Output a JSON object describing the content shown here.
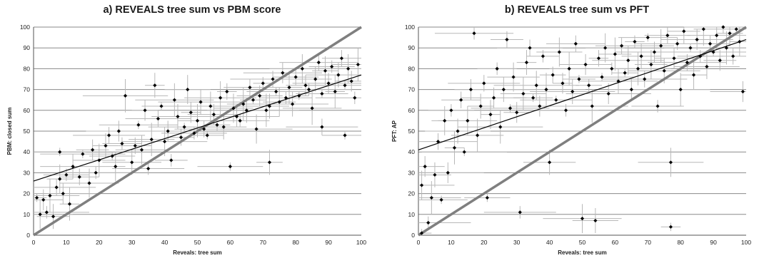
{
  "chart_data": [
    {
      "type": "scatter",
      "title": "a) REVEALS tree sum vs PBM score",
      "xlabel": "Reveals: tree sum",
      "ylabel": "PBM: closed sum",
      "xlim": [
        0,
        100
      ],
      "ylim": [
        0,
        100
      ],
      "x_ticks": [
        0,
        10,
        20,
        30,
        40,
        50,
        60,
        70,
        80,
        90,
        100
      ],
      "y_ticks": [
        0,
        10,
        20,
        30,
        40,
        50,
        60,
        70,
        80,
        90,
        100
      ],
      "grid": "horizontal",
      "series": [
        {
          "marker": "diamond",
          "error_bars": "horizontal and vertical",
          "points": [
            [
              1,
              18
            ],
            [
              2,
              10
            ],
            [
              3,
              17
            ],
            [
              4,
              11
            ],
            [
              5,
              19
            ],
            [
              6,
              9
            ],
            [
              7,
              23
            ],
            [
              8,
              40
            ],
            [
              8,
              27
            ],
            [
              9,
              20
            ],
            [
              10,
              29
            ],
            [
              11,
              15
            ],
            [
              12,
              33
            ],
            [
              14,
              28
            ],
            [
              15,
              39
            ],
            [
              17,
              25
            ],
            [
              18,
              41
            ],
            [
              19,
              30
            ],
            [
              20,
              36
            ],
            [
              22,
              43
            ],
            [
              23,
              48
            ],
            [
              24,
              38
            ],
            [
              25,
              33
            ],
            [
              26,
              50
            ],
            [
              27,
              44
            ],
            [
              28,
              67
            ],
            [
              30,
              35
            ],
            [
              31,
              43
            ],
            [
              32,
              53
            ],
            [
              33,
              41
            ],
            [
              34,
              60
            ],
            [
              35,
              32
            ],
            [
              36,
              46
            ],
            [
              37,
              72
            ],
            [
              38,
              56
            ],
            [
              39,
              62
            ],
            [
              40,
              45
            ],
            [
              41,
              50
            ],
            [
              42,
              36
            ],
            [
              43,
              65
            ],
            [
              44,
              57
            ],
            [
              45,
              47
            ],
            [
              46,
              52
            ],
            [
              47,
              70
            ],
            [
              48,
              59
            ],
            [
              49,
              49
            ],
            [
              50,
              55
            ],
            [
              51,
              64
            ],
            [
              52,
              51
            ],
            [
              53,
              48
            ],
            [
              54,
              62
            ],
            [
              55,
              58
            ],
            [
              56,
              53
            ],
            [
              57,
              66
            ],
            [
              58,
              52
            ],
            [
              59,
              69
            ],
            [
              60,
              33
            ],
            [
              61,
              61
            ],
            [
              62,
              57
            ],
            [
              63,
              55
            ],
            [
              64,
              63
            ],
            [
              65,
              60
            ],
            [
              66,
              71
            ],
            [
              67,
              65
            ],
            [
              68,
              51
            ],
            [
              69,
              67
            ],
            [
              70,
              73
            ],
            [
              71,
              60
            ],
            [
              72,
              62
            ],
            [
              73,
              75
            ],
            [
              74,
              69
            ],
            [
              75,
              64
            ],
            [
              76,
              78
            ],
            [
              77,
              66
            ],
            [
              78,
              71
            ],
            [
              79,
              63
            ],
            [
              80,
              76
            ],
            [
              81,
              67
            ],
            [
              82,
              80
            ],
            [
              83,
              72
            ],
            [
              84,
              70
            ],
            [
              85,
              61
            ],
            [
              86,
              75
            ],
            [
              87,
              83
            ],
            [
              88,
              68
            ],
            [
              89,
              79
            ],
            [
              90,
              73
            ],
            [
              91,
              81
            ],
            [
              92,
              69
            ],
            [
              93,
              77
            ],
            [
              94,
              85
            ],
            [
              95,
              72
            ],
            [
              96,
              80
            ],
            [
              97,
              74
            ],
            [
              98,
              66
            ],
            [
              99,
              82
            ],
            [
              72,
              35
            ],
            [
              88,
              52
            ],
            [
              95,
              48
            ]
          ]
        }
      ],
      "trendline": [
        [
          0,
          26
        ],
        [
          100,
          77
        ]
      ],
      "reference_line": [
        [
          0,
          0
        ],
        [
          100,
          100
        ]
      ]
    },
    {
      "type": "scatter",
      "title": "b) REVEALS tree sum vs PFT",
      "xlabel": "Reveals: tree sum",
      "ylabel": "PFT: AP",
      "xlim": [
        0,
        100
      ],
      "ylim": [
        0,
        100
      ],
      "x_ticks": [
        0,
        10,
        20,
        30,
        40,
        50,
        60,
        70,
        80,
        90,
        100
      ],
      "y_ticks": [
        0,
        10,
        20,
        30,
        40,
        50,
        60,
        70,
        80,
        90,
        100
      ],
      "grid": "horizontal",
      "series": [
        {
          "marker": "diamond",
          "error_bars": "horizontal and vertical",
          "points": [
            [
              1,
              1
            ],
            [
              1,
              24
            ],
            [
              2,
              33
            ],
            [
              3,
              6
            ],
            [
              4,
              18
            ],
            [
              5,
              29
            ],
            [
              6,
              45
            ],
            [
              7,
              17
            ],
            [
              8,
              55
            ],
            [
              9,
              30
            ],
            [
              10,
              60
            ],
            [
              11,
              42
            ],
            [
              12,
              50
            ],
            [
              13,
              65
            ],
            [
              14,
              40
            ],
            [
              15,
              55
            ],
            [
              16,
              70
            ],
            [
              17,
              97
            ],
            [
              18,
              48
            ],
            [
              19,
              62
            ],
            [
              20,
              73
            ],
            [
              21,
              18
            ],
            [
              22,
              58
            ],
            [
              23,
              66
            ],
            [
              24,
              80
            ],
            [
              25,
              52
            ],
            [
              26,
              70
            ],
            [
              27,
              94
            ],
            [
              28,
              61
            ],
            [
              29,
              76
            ],
            [
              30,
              59
            ],
            [
              31,
              11
            ],
            [
              32,
              68
            ],
            [
              33,
              83
            ],
            [
              34,
              90
            ],
            [
              35,
              66
            ],
            [
              36,
              72
            ],
            [
              37,
              62
            ],
            [
              38,
              86
            ],
            [
              39,
              70
            ],
            [
              40,
              35
            ],
            [
              41,
              77
            ],
            [
              42,
              65
            ],
            [
              43,
              88
            ],
            [
              44,
              73
            ],
            [
              45,
              60
            ],
            [
              46,
              80
            ],
            [
              47,
              69
            ],
            [
              48,
              92
            ],
            [
              49,
              75
            ],
            [
              50,
              8
            ],
            [
              51,
              82
            ],
            [
              52,
              72
            ],
            [
              53,
              62
            ],
            [
              54,
              7
            ],
            [
              55,
              85
            ],
            [
              56,
              76
            ],
            [
              57,
              90
            ],
            [
              58,
              68
            ],
            [
              59,
              80
            ],
            [
              60,
              87
            ],
            [
              61,
              74
            ],
            [
              62,
              91
            ],
            [
              63,
              78
            ],
            [
              64,
              84
            ],
            [
              65,
              70
            ],
            [
              66,
              93
            ],
            [
              67,
              80
            ],
            [
              68,
              86
            ],
            [
              69,
              75
            ],
            [
              70,
              95
            ],
            [
              71,
              82
            ],
            [
              72,
              88
            ],
            [
              73,
              62
            ],
            [
              74,
              91
            ],
            [
              75,
              79
            ],
            [
              76,
              96
            ],
            [
              77,
              4
            ],
            [
              77,
              35
            ],
            [
              78,
              85
            ],
            [
              79,
              92
            ],
            [
              80,
              70
            ],
            [
              81,
              98
            ],
            [
              82,
              83
            ],
            [
              83,
              90
            ],
            [
              84,
              77
            ],
            [
              85,
              94
            ],
            [
              86,
              86
            ],
            [
              87,
              99
            ],
            [
              88,
              81
            ],
            [
              89,
              92
            ],
            [
              90,
              88
            ],
            [
              91,
              96
            ],
            [
              92,
              84
            ],
            [
              93,
              100
            ],
            [
              94,
              90
            ],
            [
              95,
              97
            ],
            [
              96,
              86
            ],
            [
              97,
              99
            ],
            [
              98,
              93
            ],
            [
              99,
              69
            ]
          ]
        }
      ],
      "trendline": [
        [
          0,
          41
        ],
        [
          100,
          94
        ]
      ],
      "reference_line": [
        [
          0,
          0
        ],
        [
          100,
          100
        ]
      ]
    }
  ]
}
